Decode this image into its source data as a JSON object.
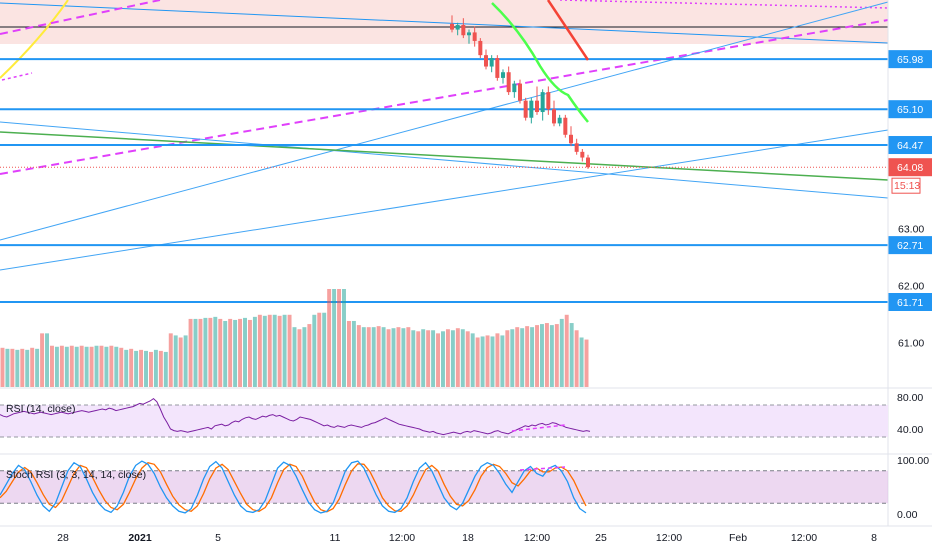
{
  "price_axis": {
    "ticks": [
      {
        "label": "63.00",
        "value": 63.0
      },
      {
        "label": "62.00",
        "value": 62.0
      },
      {
        "label": "61.00",
        "value": 61.0
      }
    ],
    "level_tags": [
      {
        "label": "65.98",
        "value": 65.98,
        "color": "#2196f3"
      },
      {
        "label": "65.10",
        "value": 65.1,
        "color": "#2196f3"
      },
      {
        "label": "64.47",
        "value": 64.47,
        "color": "#2196f3"
      },
      {
        "label": "62.71",
        "value": 62.71,
        "color": "#2196f3"
      },
      {
        "label": "61.71",
        "value": 61.71,
        "color": "#2196f3"
      }
    ],
    "last_price": {
      "label": "64.08",
      "value": 64.08,
      "color": "#ef5350"
    },
    "countdown": {
      "label": "15:13",
      "color": "#ef5350"
    }
  },
  "rsi": {
    "label": "RSI (14, close)",
    "ticks": [
      {
        "label": "80.00",
        "value": 80
      },
      {
        "label": "40.00",
        "value": 40
      }
    ],
    "upper": 70,
    "lower": 30,
    "range": [
      20,
      80
    ],
    "line_color": "#7b1fa2",
    "band_color": "#f3e5fc",
    "values": [
      58,
      56,
      55,
      57,
      59,
      60,
      61,
      62,
      61,
      60,
      59,
      60,
      61,
      60,
      59,
      58,
      59,
      60,
      61,
      60,
      59,
      60,
      61,
      62,
      63,
      62,
      61,
      62,
      63,
      64,
      65,
      64,
      66,
      65,
      63,
      64,
      65,
      66,
      67,
      68,
      70,
      72,
      71,
      73,
      75,
      78,
      74,
      65,
      55,
      48,
      40,
      38,
      37,
      38,
      37,
      36,
      37,
      38,
      39,
      40,
      41,
      42,
      40,
      44,
      45,
      46,
      44,
      45,
      48,
      50,
      49,
      52,
      54,
      55,
      53,
      52,
      54,
      56,
      55,
      57,
      58,
      56,
      57,
      55,
      53,
      51,
      50,
      52,
      55,
      54,
      53,
      52,
      50,
      48,
      46,
      44,
      45,
      43,
      42,
      44,
      43,
      42,
      44,
      45,
      44,
      43,
      42,
      44,
      45,
      47,
      48,
      50,
      52,
      54,
      52,
      50,
      48,
      46,
      45,
      44,
      43,
      42,
      41,
      40,
      38,
      37,
      36,
      37,
      35,
      34,
      33,
      34,
      35,
      36,
      35,
      34,
      36,
      37,
      36,
      38,
      37,
      36,
      35,
      34,
      35,
      37,
      38,
      36,
      35,
      34,
      36,
      38,
      40,
      42,
      44,
      43,
      45,
      44,
      46,
      47,
      45,
      46,
      48,
      47,
      45,
      44,
      42,
      41,
      40,
      39,
      38,
      37,
      38,
      37
    ]
  },
  "stoch": {
    "label": "Stoch RSI (3, 3, 14, 14, close)",
    "ticks": [
      {
        "label": "100.00",
        "value": 100
      },
      {
        "label": "0.00",
        "value": 0
      }
    ],
    "upper": 80,
    "lower": 20,
    "range": [
      0,
      100
    ],
    "k_color": "#2196f3",
    "d_color": "#ff6d00",
    "band_color": "#e1bee7",
    "k_values": [
      35,
      55,
      75,
      90,
      82,
      60,
      35,
      15,
      5,
      20,
      50,
      80,
      95,
      88,
      65,
      40,
      20,
      8,
      3,
      15,
      40,
      70,
      90,
      98,
      92,
      75,
      50,
      30,
      15,
      5,
      2,
      10,
      35,
      65,
      88,
      97,
      85,
      60,
      35,
      15,
      5,
      3,
      8,
      25,
      55,
      85,
      96,
      90,
      70,
      45,
      22,
      8,
      2,
      5,
      20,
      50,
      80,
      95,
      98,
      85,
      60,
      35,
      15,
      5,
      3,
      10,
      30,
      60,
      85,
      95,
      80,
      55,
      30,
      15,
      8,
      20,
      45,
      70,
      88,
      95,
      90,
      75,
      55,
      40,
      60,
      80,
      88,
      75,
      70,
      85,
      90,
      80,
      60,
      30,
      10,
      2
    ],
    "d_values": [
      30,
      42,
      60,
      78,
      86,
      78,
      58,
      36,
      18,
      12,
      25,
      50,
      75,
      90,
      86,
      68,
      45,
      25,
      12,
      8,
      18,
      40,
      65,
      85,
      95,
      92,
      78,
      55,
      33,
      17,
      8,
      5,
      15,
      38,
      65,
      85,
      92,
      82,
      60,
      38,
      18,
      8,
      5,
      12,
      30,
      58,
      82,
      92,
      88,
      70,
      45,
      22,
      8,
      4,
      10,
      28,
      55,
      80,
      93,
      92,
      78,
      55,
      30,
      15,
      6,
      5,
      15,
      35,
      60,
      82,
      90,
      80,
      55,
      33,
      18,
      15,
      25,
      45,
      70,
      86,
      92,
      88,
      75,
      58,
      52,
      65,
      80,
      85,
      78,
      78,
      85,
      87,
      80,
      62,
      38,
      15
    ]
  },
  "time_axis": {
    "labels": [
      {
        "label": "28",
        "bold": false
      },
      {
        "label": "2021",
        "bold": true
      },
      {
        "label": "5",
        "bold": false
      },
      {
        "label": "11",
        "bold": false
      },
      {
        "label": "12:00",
        "bold": false
      },
      {
        "label": "18",
        "bold": false
      },
      {
        "label": "12:00",
        "bold": false
      },
      {
        "label": "25",
        "bold": false
      },
      {
        "label": "12:00",
        "bold": false
      },
      {
        "label": "Feb",
        "bold": false
      },
      {
        "label": "12:00",
        "bold": false
      },
      {
        "label": "8",
        "bold": false
      }
    ]
  },
  "candles": [
    {
      "o": 66.6,
      "h": 66.75,
      "l": 66.45,
      "c": 66.5
    },
    {
      "o": 66.5,
      "h": 66.62,
      "l": 66.4,
      "c": 66.58
    },
    {
      "o": 66.58,
      "h": 66.7,
      "l": 66.35,
      "c": 66.4
    },
    {
      "o": 66.4,
      "h": 66.5,
      "l": 66.25,
      "c": 66.45
    },
    {
      "o": 66.45,
      "h": 66.55,
      "l": 66.2,
      "c": 66.3
    },
    {
      "o": 66.3,
      "h": 66.35,
      "l": 66.0,
      "c": 66.05
    },
    {
      "o": 66.05,
      "h": 66.15,
      "l": 65.8,
      "c": 65.85
    },
    {
      "o": 65.85,
      "h": 66.05,
      "l": 65.75,
      "c": 66.0
    },
    {
      "o": 66.0,
      "h": 66.05,
      "l": 65.6,
      "c": 65.65
    },
    {
      "o": 65.65,
      "h": 65.8,
      "l": 65.55,
      "c": 65.75
    },
    {
      "o": 65.75,
      "h": 65.85,
      "l": 65.35,
      "c": 65.4
    },
    {
      "o": 65.4,
      "h": 65.6,
      "l": 65.3,
      "c": 65.55
    },
    {
      "o": 65.55,
      "h": 65.62,
      "l": 65.2,
      "c": 65.25
    },
    {
      "o": 65.25,
      "h": 65.3,
      "l": 64.9,
      "c": 64.95
    },
    {
      "o": 64.95,
      "h": 65.3,
      "l": 64.85,
      "c": 65.25
    },
    {
      "o": 65.25,
      "h": 65.5,
      "l": 65.0,
      "c": 65.05
    },
    {
      "o": 65.05,
      "h": 65.45,
      "l": 64.9,
      "c": 65.4
    },
    {
      "o": 65.4,
      "h": 65.5,
      "l": 65.0,
      "c": 65.1
    },
    {
      "o": 65.1,
      "h": 65.25,
      "l": 64.8,
      "c": 64.85
    },
    {
      "o": 64.85,
      "h": 65.0,
      "l": 64.8,
      "c": 64.95
    },
    {
      "o": 64.95,
      "h": 65.0,
      "l": 64.6,
      "c": 64.65
    },
    {
      "o": 64.65,
      "h": 64.8,
      "l": 64.45,
      "c": 64.5
    },
    {
      "o": 64.5,
      "h": 64.58,
      "l": 64.3,
      "c": 64.35
    },
    {
      "o": 64.35,
      "h": 64.4,
      "l": 64.18,
      "c": 64.25
    },
    {
      "o": 64.25,
      "h": 64.3,
      "l": 64.05,
      "c": 64.08
    }
  ],
  "volume": [
    {
      "v": 38,
      "up": false
    },
    {
      "v": 37,
      "up": true
    },
    {
      "v": 37,
      "up": false
    },
    {
      "v": 36,
      "up": true
    },
    {
      "v": 37,
      "up": false
    },
    {
      "v": 36,
      "up": true
    },
    {
      "v": 38,
      "up": false
    },
    {
      "v": 37,
      "up": true
    },
    {
      "v": 52,
      "up": false
    },
    {
      "v": 52,
      "up": true
    },
    {
      "v": 40,
      "up": false
    },
    {
      "v": 39,
      "up": true
    },
    {
      "v": 40,
      "up": false
    },
    {
      "v": 39,
      "up": true
    },
    {
      "v": 40,
      "up": false
    },
    {
      "v": 39,
      "up": true
    },
    {
      "v": 40,
      "up": false
    },
    {
      "v": 39,
      "up": true
    },
    {
      "v": 39,
      "up": false
    },
    {
      "v": 40,
      "up": true
    },
    {
      "v": 40,
      "up": false
    },
    {
      "v": 39,
      "up": true
    },
    {
      "v": 40,
      "up": false
    },
    {
      "v": 39,
      "up": true
    },
    {
      "v": 38,
      "up": false
    },
    {
      "v": 36,
      "up": true
    },
    {
      "v": 37,
      "up": false
    },
    {
      "v": 35,
      "up": true
    },
    {
      "v": 36,
      "up": false
    },
    {
      "v": 35,
      "up": true
    },
    {
      "v": 34,
      "up": false
    },
    {
      "v": 36,
      "up": true
    },
    {
      "v": 35,
      "up": false
    },
    {
      "v": 34,
      "up": true
    },
    {
      "v": 52,
      "up": false
    },
    {
      "v": 50,
      "up": true
    },
    {
      "v": 48,
      "up": false
    },
    {
      "v": 50,
      "up": true
    },
    {
      "v": 66,
      "up": false
    },
    {
      "v": 66,
      "up": true
    },
    {
      "v": 66,
      "up": false
    },
    {
      "v": 67,
      "up": true
    },
    {
      "v": 67,
      "up": false
    },
    {
      "v": 68,
      "up": true
    },
    {
      "v": 66,
      "up": false
    },
    {
      "v": 64,
      "up": true
    },
    {
      "v": 66,
      "up": false
    },
    {
      "v": 65,
      "up": true
    },
    {
      "v": 66,
      "up": false
    },
    {
      "v": 67,
      "up": true
    },
    {
      "v": 65,
      "up": false
    },
    {
      "v": 68,
      "up": true
    },
    {
      "v": 70,
      "up": false
    },
    {
      "v": 69,
      "up": true
    },
    {
      "v": 70,
      "up": false
    },
    {
      "v": 70,
      "up": true
    },
    {
      "v": 69,
      "up": false
    },
    {
      "v": 70,
      "up": true
    },
    {
      "v": 70,
      "up": false
    },
    {
      "v": 58,
      "up": true
    },
    {
      "v": 56,
      "up": false
    },
    {
      "v": 58,
      "up": true
    },
    {
      "v": 61,
      "up": false
    },
    {
      "v": 70,
      "up": true
    },
    {
      "v": 72,
      "up": false
    },
    {
      "v": 72,
      "up": true
    },
    {
      "v": 95,
      "up": false
    },
    {
      "v": 95,
      "up": true
    },
    {
      "v": 95,
      "up": false
    },
    {
      "v": 95,
      "up": true
    },
    {
      "v": 64,
      "up": false
    },
    {
      "v": 64,
      "up": true
    },
    {
      "v": 60,
      "up": false
    },
    {
      "v": 58,
      "up": true
    },
    {
      "v": 58,
      "up": false
    },
    {
      "v": 58,
      "up": true
    },
    {
      "v": 59,
      "up": false
    },
    {
      "v": 58,
      "up": true
    },
    {
      "v": 56,
      "up": false
    },
    {
      "v": 57,
      "up": true
    },
    {
      "v": 58,
      "up": false
    },
    {
      "v": 57,
      "up": true
    },
    {
      "v": 58,
      "up": false
    },
    {
      "v": 55,
      "up": true
    },
    {
      "v": 54,
      "up": false
    },
    {
      "v": 56,
      "up": true
    },
    {
      "v": 55,
      "up": false
    },
    {
      "v": 55,
      "up": true
    },
    {
      "v": 52,
      "up": false
    },
    {
      "v": 54,
      "up": true
    },
    {
      "v": 56,
      "up": false
    },
    {
      "v": 55,
      "up": true
    },
    {
      "v": 57,
      "up": false
    },
    {
      "v": 56,
      "up": true
    },
    {
      "v": 54,
      "up": false
    },
    {
      "v": 52,
      "up": true
    },
    {
      "v": 48,
      "up": false
    },
    {
      "v": 49,
      "up": true
    },
    {
      "v": 50,
      "up": false
    },
    {
      "v": 49,
      "up": true
    },
    {
      "v": 52,
      "up": false
    },
    {
      "v": 50,
      "up": true
    },
    {
      "v": 55,
      "up": false
    },
    {
      "v": 56,
      "up": true
    },
    {
      "v": 58,
      "up": false
    },
    {
      "v": 57,
      "up": true
    },
    {
      "v": 59,
      "up": false
    },
    {
      "v": 58,
      "up": true
    },
    {
      "v": 60,
      "up": false
    },
    {
      "v": 61,
      "up": true
    },
    {
      "v": 62,
      "up": false
    },
    {
      "v": 60,
      "up": true
    },
    {
      "v": 61,
      "up": false
    },
    {
      "v": 66,
      "up": true
    },
    {
      "v": 70,
      "up": false
    },
    {
      "v": 62,
      "up": true
    },
    {
      "v": 55,
      "up": false
    },
    {
      "v": 48,
      "up": true
    },
    {
      "v": 46,
      "up": false
    }
  ],
  "colors": {
    "up": "#26a69a",
    "down": "#ef5350",
    "level_line": "#2196f3",
    "dashed_magenta": "#e040fb",
    "trend_green": "#4caf50",
    "ema_green": "#4cff4c",
    "ema_red": "#f44336",
    "yellow": "#ffeb3b",
    "zone_fill": "#fbe4e2",
    "ray_blue": "#42a5f5"
  }
}
